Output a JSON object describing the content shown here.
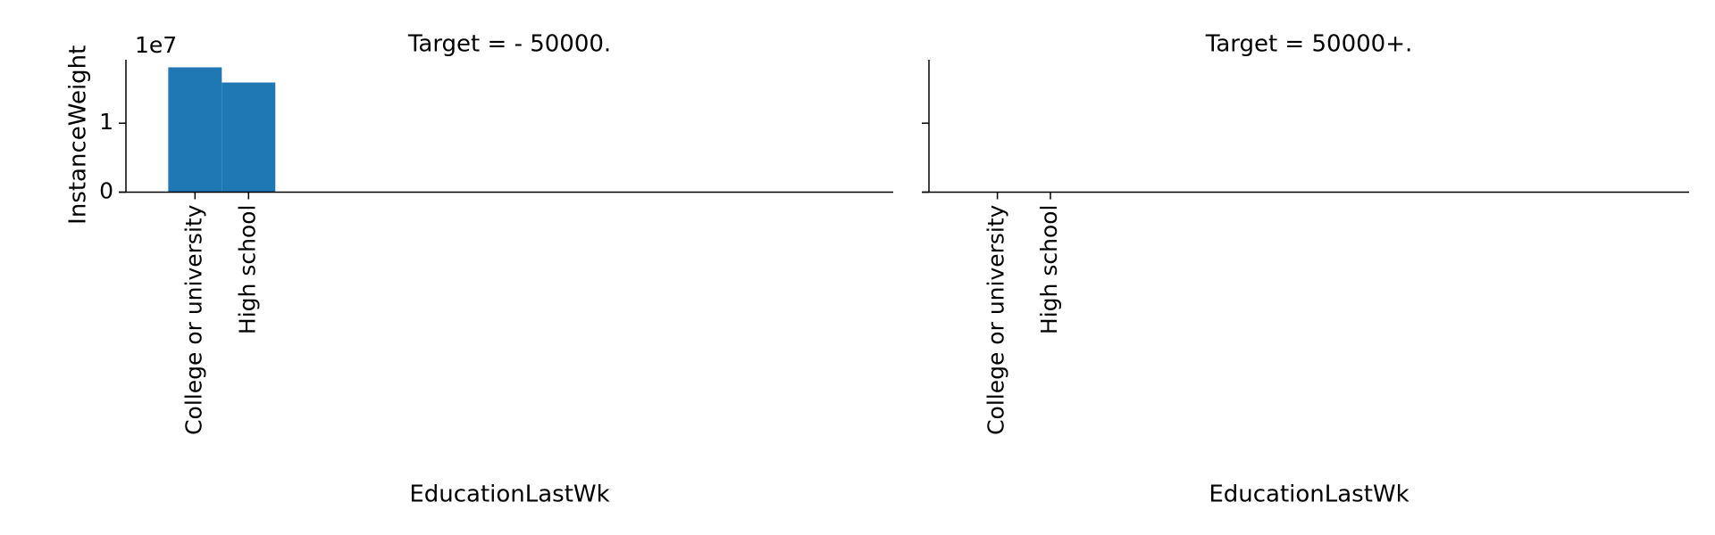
{
  "chart_data": [
    {
      "type": "bar",
      "title": "Target =  - 50000.",
      "xlabel": "EducationLastWk",
      "ylabel": "InstanceWeight",
      "y_offset_label": "1e7",
      "categories": [
        "College or university",
        "High school"
      ],
      "values": [
        1.81,
        1.59
      ],
      "color": "#1f77b4",
      "xlim": [
        -1.29,
        13.04
      ],
      "ylim": [
        0,
        1.92
      ],
      "yticks": [
        0,
        1
      ],
      "ytick_labels": true
    },
    {
      "type": "bar",
      "title": "Target =  50000+.",
      "xlabel": "EducationLastWk",
      "categories": [
        "College or university",
        "High school"
      ],
      "values": [
        null,
        null
      ],
      "color": "#1f77b4",
      "xlim": [
        -1.29,
        13.04
      ],
      "ylim": [
        0,
        1.92
      ],
      "yticks": [
        0,
        1
      ],
      "ytick_labels": false
    }
  ]
}
